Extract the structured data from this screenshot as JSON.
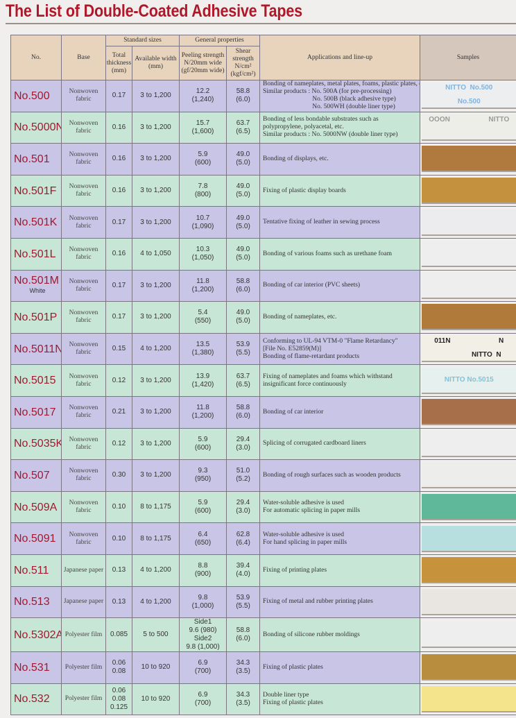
{
  "title": "The List of Double-Coated Adhesive Tapes",
  "header": {
    "no": "No.",
    "base": "Base",
    "standard_sizes": "Standard sizes",
    "general_properties": "General properties",
    "thickness": "Total thickness (mm)",
    "width": "Available width (mm)",
    "peeling": "Peeling strength N/20mm wide (gf/20mm wide)",
    "shear": "Shear strength N/cm² (kgf/cm²)",
    "applications": "Applications and line-up",
    "samples": "Samples"
  },
  "colors": {
    "title": "#b0182a",
    "row_purple": "#c8c5e6",
    "row_green": "#c8e6d6",
    "header": "#e8d3bd"
  },
  "rows": [
    {
      "no": "No.500",
      "base": "Nonwoven fabric",
      "thickness": "0.17",
      "width": "3 to 1,200",
      "peeling": "12.2\n(1,240)",
      "shear": "58.8\n(6.0)",
      "app": "Bonding of nameplates, metal plates, foams, plastic plates, etc.\nSimilar products : No. 500A (for pre-processing)\n                              No. 500B (black adhesive type)\n                              No. 500WH (double liner type)",
      "sample_color": "#eceef0",
      "sample_text": "NITTO  No.500\n\nNo.500",
      "sample_text_color": "#7fb3e0"
    },
    {
      "no": "No.5000N",
      "base": "Nonwoven fabric",
      "thickness": "0.16",
      "width": "3 to 1,200",
      "peeling": "15.7\n(1,600)",
      "shear": "63.7\n(6.5)",
      "app": "Bonding of less bondable substrates such as\npolypropylene, polyacetal, etc.\nSimilar products : No. 5000NW (double liner type)",
      "sample_color": "#eeeee8",
      "sample_text": "OOON                    NITTO",
      "sample_text_color": "#999"
    },
    {
      "no": "No.501",
      "base": "Nonwoven fabric",
      "thickness": "0.16",
      "width": "3 to 1,200",
      "peeling": "5.9\n(600)",
      "shear": "49.0\n(5.0)",
      "app": "Bonding of displays, etc.",
      "sample_color": "#b07a3e"
    },
    {
      "no": "No.501F",
      "base": "Nonwoven fabric",
      "thickness": "0.16",
      "width": "3 to 1,200",
      "peeling": "7.8\n(800)",
      "shear": "49.0\n(5.0)",
      "app": "Fixing of plastic display boards",
      "sample_color": "#c4923e"
    },
    {
      "no": "No.501K",
      "base": "Nonwoven fabric",
      "thickness": "0.17",
      "width": "3 to 1,200",
      "peeling": "10.7\n(1,090)",
      "shear": "49.0\n(5.0)",
      "app": "Tentative fixing of leather in sewing process",
      "sample_color": "#ecebee"
    },
    {
      "no": "No.501L",
      "base": "Nonwoven fabric",
      "thickness": "0.16",
      "width": "4 to 1,050",
      "peeling": "10.3\n(1,050)",
      "shear": "49.0\n(5.0)",
      "app": "Bonding of various foams such as urethane foam",
      "sample_color": "#eeeeee"
    },
    {
      "no": "No.501M",
      "no_sub": "White",
      "base": "Nonwoven fabric",
      "thickness": "0.17",
      "width": "3 to 1,200",
      "peeling": "11.8\n(1,200)",
      "shear": "58.8\n(6.0)",
      "app": "Bonding of car interior (PVC sheets)",
      "sample_color": "#eeeeee"
    },
    {
      "no": "No.501P",
      "base": "Nonwoven fabric",
      "thickness": "0.17",
      "width": "3 to 1,200",
      "peeling": "5.4\n(550)",
      "shear": "49.0\n(5.0)",
      "app": "Bonding of nameplates, etc.",
      "sample_color": "#b07a3a"
    },
    {
      "no": "No.5011N",
      "base": "Nonwoven fabric",
      "thickness": "0.15",
      "width": "4 to 1,200",
      "peeling": "13.5\n(1,380)",
      "shear": "53.9\n(5.5)",
      "app": "Conforming to UL-94 VTM-0 \"Flame Retardancy\"\n[File No. E52859(M)]\nBonding of flame-retardant products",
      "sample_color": "#f2efe6",
      "sample_text": "011N                         N\n\n                  NITTO  N",
      "sample_text_color": "#222"
    },
    {
      "no": "No.5015",
      "base": "Nonwoven fabric",
      "thickness": "0.12",
      "width": "3 to 1,200",
      "peeling": "13.9\n(1,420)",
      "shear": "63.7\n(6.5)",
      "app": "Fixing of nameplates and foams which withstand\ninsignificant force continuously",
      "sample_color": "#e6f0ee",
      "sample_text": "\nNITTO No.5015",
      "sample_text_color": "#7fc4d8"
    },
    {
      "no": "No.5017",
      "base": "Nonwoven fabric",
      "thickness": "0.21",
      "width": "3 to 1,200",
      "peeling": "11.8\n(1,200)",
      "shear": "58.8\n(6.0)",
      "app": "Bonding of car interior",
      "sample_color": "#a8704a"
    },
    {
      "no": "No.5035K",
      "base": "Nonwoven fabric",
      "thickness": "0.12",
      "width": "3 to 1,200",
      "peeling": "5.9\n(600)",
      "shear": "29.4\n(3.0)",
      "app": "Splicing of corrugated cardboard liners",
      "sample_color": "#eeeeee"
    },
    {
      "no": "No.507",
      "base": "Nonwoven fabric",
      "thickness": "0.30",
      "width": "3 to 1,200",
      "peeling": "9.3\n(950)",
      "shear": "51.0\n(5.2)",
      "app": "Bonding of rough surfaces such as wooden products",
      "sample_color": "#ededec"
    },
    {
      "no": "No.509A",
      "base": "Nonwoven fabric",
      "thickness": "0.10",
      "width": "8 to 1,175",
      "peeling": "5.9\n(600)",
      "shear": "29.4\n(3.0)",
      "app": "Water-soluble adhesive is used\nFor automatic splicing in paper mills",
      "sample_color": "#5fb89a"
    },
    {
      "no": "No.5091",
      "base": "Nonwoven fabric",
      "thickness": "0.10",
      "width": "8 to 1,175",
      "peeling": "6.4\n(650)",
      "shear": "62.8\n(6.4)",
      "app": "Water-soluble adhesive is used\nFor hand splicing in paper mills",
      "sample_color": "#b8dfe0"
    },
    {
      "no": "No.511",
      "base": "Japanese paper",
      "thickness": "0.13",
      "width": "4 to 1,200",
      "peeling": "8.8\n(900)",
      "shear": "39.4\n(4.0)",
      "app": "Fixing of printing plates",
      "sample_color": "#c6923c"
    },
    {
      "no": "No.513",
      "base": "Japanese paper",
      "thickness": "0.13",
      "width": "4 to 1,200",
      "peeling": "9.8\n(1,000)",
      "shear": "53.9\n(5.5)",
      "app": "Fixing of metal and rubber printing plates",
      "sample_color": "#e9e6e2"
    },
    {
      "no": "No.5302A",
      "base": "Polyester film",
      "thickness": "0.085",
      "width": "5 to 500",
      "peeling": "Side1\n9.6 (980)\nSide2\n9.8 (1,000)",
      "shear": "58.8\n(6.0)",
      "app": "Bonding of silicone rubber moldings",
      "sample_color": "#eeeeee"
    },
    {
      "no": "No.531",
      "base": "Polyester film",
      "thickness": "0.06\n0.08",
      "width": "10 to 920",
      "peeling": "6.9\n(700)",
      "shear": "34.3\n(3.5)",
      "app": "Fixing of plastic plates",
      "sample_color": "#b98d3e"
    },
    {
      "no": "No.532",
      "base": "Polyester film",
      "thickness": "0.06\n0.08\n0.125",
      "width": "10 to 920",
      "peeling": "6.9\n(700)",
      "shear": "34.3\n(3.5)",
      "app": "Double liner type\nFixing of plastic plates",
      "sample_color": "#f4e48c"
    }
  ]
}
